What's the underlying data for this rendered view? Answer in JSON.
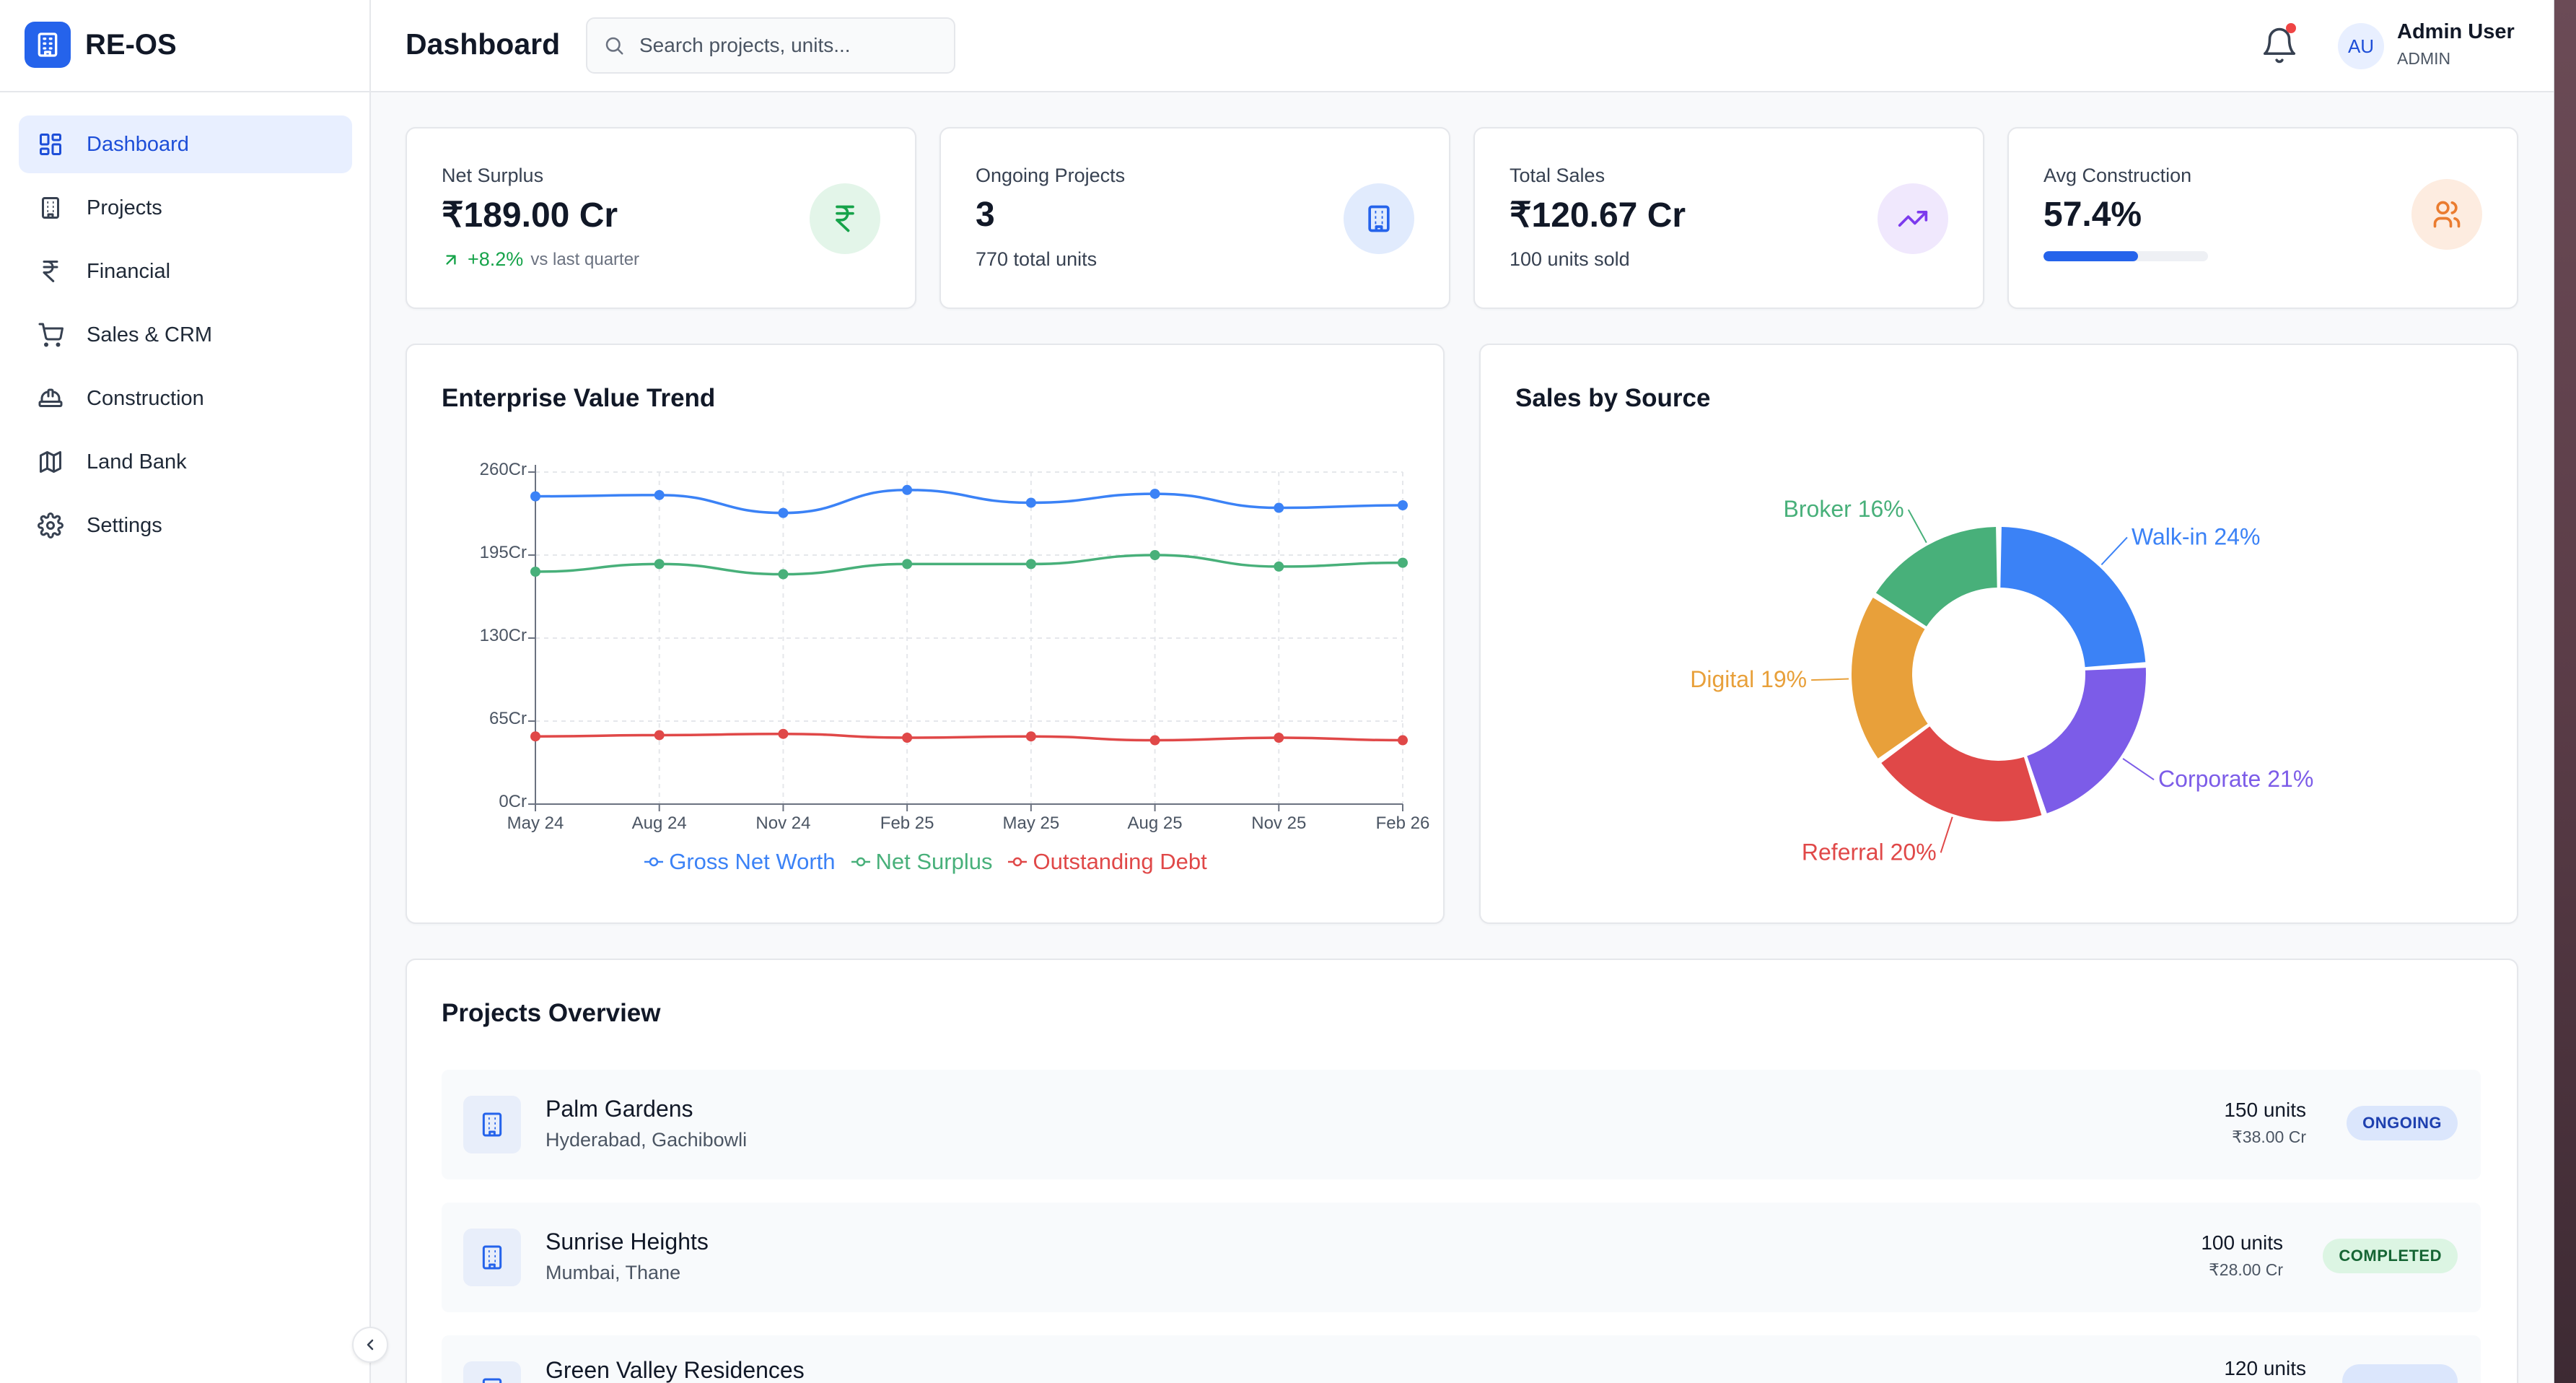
{
  "app": {
    "name": "RE-OS"
  },
  "sidebar": {
    "items": [
      {
        "label": "Dashboard",
        "icon": "dashboard-grid-icon",
        "active": true
      },
      {
        "label": "Projects",
        "icon": "building-icon"
      },
      {
        "label": "Financial",
        "icon": "rupee-icon"
      },
      {
        "label": "Sales & CRM",
        "icon": "cart-icon"
      },
      {
        "label": "Construction",
        "icon": "hard-hat-icon"
      },
      {
        "label": "Land Bank",
        "icon": "map-icon"
      },
      {
        "label": "Settings",
        "icon": "gear-icon"
      }
    ]
  },
  "header": {
    "title": "Dashboard",
    "search_placeholder": "Search projects, units...",
    "user_initials": "AU",
    "user_name": "Admin User",
    "user_role": "ADMIN"
  },
  "kpis": {
    "net_surplus": {
      "label": "Net Surplus",
      "value": "₹189.00 Cr",
      "trend": "+8.2%",
      "trend_note": "vs last quarter"
    },
    "ongoing_projects": {
      "label": "Ongoing Projects",
      "value": "3",
      "sub": "770 total units"
    },
    "total_sales": {
      "label": "Total Sales",
      "value": "₹120.67 Cr",
      "sub": "100 units sold"
    },
    "avg_construction": {
      "label": "Avg Construction",
      "value": "57.4%",
      "progress": 57.4
    }
  },
  "colors": {
    "accent": "#2563eb",
    "gross": "#3b82f6",
    "surplus": "#48b07a",
    "debt": "#e04848",
    "walkin": "#3b82f6",
    "corporate": "#7c5ce8",
    "referral": "#e04848",
    "digital": "#e8a03a",
    "broker": "#48b07a"
  },
  "trend_chart": {
    "title": "Enterprise Value Trend",
    "chart_data": {
      "type": "line",
      "x": [
        "May 24",
        "Aug 24",
        "Nov 24",
        "Feb 25",
        "May 25",
        "Aug 25",
        "Nov 25",
        "Feb 26"
      ],
      "y_ticks": [
        "0Cr",
        "65Cr",
        "130Cr",
        "195Cr",
        "260Cr"
      ],
      "ylim": [
        0,
        260
      ],
      "grid": true,
      "legend": "bottom",
      "series": [
        {
          "name": "Gross Net Worth",
          "values": [
            241,
            242,
            228,
            246,
            236,
            243,
            232,
            234
          ]
        },
        {
          "name": "Net Surplus",
          "values": [
            182,
            188,
            180,
            188,
            188,
            195,
            186,
            189
          ]
        },
        {
          "name": "Outstanding Debt",
          "values": [
            53,
            54,
            55,
            52,
            53,
            50,
            52,
            50
          ]
        }
      ]
    }
  },
  "source_chart": {
    "title": "Sales by Source",
    "chart_data": {
      "type": "pie",
      "donut": true,
      "slices": [
        {
          "label": "Walk-in 24%",
          "value": 24
        },
        {
          "label": "Corporate 21%",
          "value": 21
        },
        {
          "label": "Referral 20%",
          "value": 20
        },
        {
          "label": "Digital 19%",
          "value": 19
        },
        {
          "label": "Broker 16%",
          "value": 16
        }
      ]
    }
  },
  "projects": {
    "title": "Projects Overview",
    "rows": [
      {
        "name": "Palm Gardens",
        "location": "Hyderabad, Gachibowli",
        "units": "150 units",
        "value": "₹38.00 Cr",
        "status": "ONGOING"
      },
      {
        "name": "Sunrise Heights",
        "location": "Mumbai, Thane",
        "units": "100 units",
        "value": "₹28.00 Cr",
        "status": "COMPLETED"
      },
      {
        "name": "Green Valley Residences",
        "location": "",
        "units": "120 units",
        "value": "",
        "status": ""
      }
    ]
  }
}
